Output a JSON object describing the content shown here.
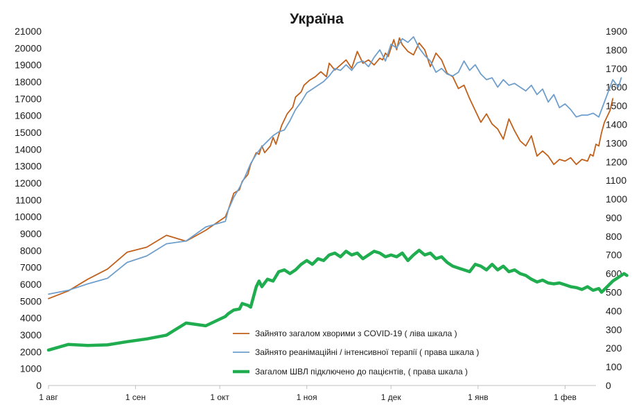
{
  "chart_data": {
    "type": "line",
    "title": "Україна",
    "y_left": {
      "min": 0,
      "max": 21000,
      "step": 1000,
      "ticks": [
        "0",
        "1000",
        "2000",
        "3000",
        "4000",
        "5000",
        "6000",
        "7000",
        "8000",
        "9000",
        "10000",
        "11000",
        "12000",
        "13000",
        "14000",
        "15000",
        "16000",
        "17000",
        "18000",
        "19000",
        "20000",
        "21000"
      ]
    },
    "y_right": {
      "min": 0,
      "max": 1900,
      "step": 100,
      "ticks": [
        "0",
        "100",
        "200",
        "300",
        "400",
        "500",
        "600",
        "700",
        "800",
        "900",
        "1000",
        "1100",
        "1200",
        "1300",
        "1400",
        "1500",
        "1600",
        "1700",
        "1800",
        "1900"
      ]
    },
    "x_range_days": [
      0,
      195
    ],
    "x_ticks": [
      {
        "label": "1 авг",
        "day": 0
      },
      {
        "label": "1 сен",
        "day": 31
      },
      {
        "label": "1 окт",
        "day": 61
      },
      {
        "label": "1 ноя",
        "day": 92
      },
      {
        "label": "1 дек",
        "day": 122
      },
      {
        "label": "1 янв",
        "day": 153
      },
      {
        "label": "1 фев",
        "day": 184
      }
    ],
    "series": [
      {
        "name": "Зайнято загалом хворими з COVID-19 ( ліва шкала )",
        "axis": "left",
        "color": "#c0601a",
        "width": 1.8,
        "points": [
          [
            0,
            5150
          ],
          [
            7,
            5600
          ],
          [
            14,
            6300
          ],
          [
            21,
            6900
          ],
          [
            28,
            7900
          ],
          [
            35,
            8200
          ],
          [
            42,
            8900
          ],
          [
            49,
            8550
          ],
          [
            56,
            9200
          ],
          [
            63,
            10000
          ],
          [
            64,
            10400
          ],
          [
            66,
            11400
          ],
          [
            68,
            11600
          ],
          [
            69,
            12100
          ],
          [
            71,
            12500
          ],
          [
            72,
            13100
          ],
          [
            74,
            13800
          ],
          [
            75,
            13700
          ],
          [
            76,
            14200
          ],
          [
            77,
            13800
          ],
          [
            79,
            14200
          ],
          [
            80,
            14700
          ],
          [
            81,
            14300
          ],
          [
            83,
            15400
          ],
          [
            85,
            16100
          ],
          [
            87,
            16500
          ],
          [
            88,
            17100
          ],
          [
            90,
            17400
          ],
          [
            91,
            17800
          ],
          [
            93,
            18100
          ],
          [
            95,
            18300
          ],
          [
            97,
            18600
          ],
          [
            99,
            18300
          ],
          [
            100,
            19100
          ],
          [
            102,
            18700
          ],
          [
            104,
            19000
          ],
          [
            106,
            19300
          ],
          [
            108,
            18800
          ],
          [
            110,
            19800
          ],
          [
            112,
            19100
          ],
          [
            114,
            19300
          ],
          [
            116,
            19000
          ],
          [
            118,
            19400
          ],
          [
            119,
            19300
          ],
          [
            120,
            19700
          ],
          [
            121,
            19500
          ],
          [
            122,
            20000
          ],
          [
            123,
            20500
          ],
          [
            124,
            19900
          ],
          [
            125,
            20600
          ],
          [
            126,
            20200
          ],
          [
            128,
            19800
          ],
          [
            130,
            19600
          ],
          [
            132,
            20300
          ],
          [
            134,
            19900
          ],
          [
            136,
            18900
          ],
          [
            138,
            19700
          ],
          [
            140,
            19300
          ],
          [
            142,
            18500
          ],
          [
            144,
            18300
          ],
          [
            146,
            17600
          ],
          [
            148,
            17800
          ],
          [
            150,
            17000
          ],
          [
            152,
            16300
          ],
          [
            154,
            15600
          ],
          [
            156,
            16100
          ],
          [
            158,
            15500
          ],
          [
            160,
            15200
          ],
          [
            162,
            14600
          ],
          [
            164,
            15800
          ],
          [
            166,
            15100
          ],
          [
            168,
            14500
          ],
          [
            170,
            14200
          ],
          [
            172,
            14800
          ],
          [
            174,
            13600
          ],
          [
            176,
            13900
          ],
          [
            178,
            13600
          ],
          [
            180,
            13100
          ],
          [
            182,
            13400
          ],
          [
            184,
            13300
          ],
          [
            186,
            13500
          ],
          [
            188,
            13100
          ],
          [
            190,
            13400
          ],
          [
            192,
            13300
          ],
          [
            193,
            13700
          ],
          [
            194,
            13600
          ],
          [
            195,
            14300
          ],
          [
            196,
            14200
          ],
          [
            197,
            15000
          ],
          [
            198,
            15600
          ],
          [
            200,
            16300
          ],
          [
            201,
            17000
          ]
        ]
      },
      {
        "name": "Зайнято реанімаційні / інтенсивної терапії ( права шкала )",
        "axis": "right",
        "color": "#6e9ecb",
        "width": 1.8,
        "points": [
          [
            0,
            490
          ],
          [
            7,
            510
          ],
          [
            14,
            545
          ],
          [
            21,
            575
          ],
          [
            28,
            660
          ],
          [
            35,
            695
          ],
          [
            42,
            760
          ],
          [
            49,
            775
          ],
          [
            56,
            850
          ],
          [
            63,
            880
          ],
          [
            64,
            940
          ],
          [
            66,
            1010
          ],
          [
            68,
            1060
          ],
          [
            70,
            1120
          ],
          [
            72,
            1190
          ],
          [
            74,
            1240
          ],
          [
            76,
            1280
          ],
          [
            78,
            1310
          ],
          [
            80,
            1340
          ],
          [
            82,
            1360
          ],
          [
            84,
            1370
          ],
          [
            86,
            1420
          ],
          [
            88,
            1480
          ],
          [
            90,
            1520
          ],
          [
            92,
            1570
          ],
          [
            94,
            1590
          ],
          [
            96,
            1610
          ],
          [
            98,
            1630
          ],
          [
            100,
            1660
          ],
          [
            102,
            1700
          ],
          [
            104,
            1690
          ],
          [
            106,
            1720
          ],
          [
            108,
            1690
          ],
          [
            110,
            1730
          ],
          [
            112,
            1740
          ],
          [
            114,
            1710
          ],
          [
            116,
            1760
          ],
          [
            118,
            1800
          ],
          [
            120,
            1740
          ],
          [
            122,
            1830
          ],
          [
            124,
            1810
          ],
          [
            126,
            1860
          ],
          [
            128,
            1840
          ],
          [
            130,
            1870
          ],
          [
            132,
            1810
          ],
          [
            134,
            1770
          ],
          [
            136,
            1740
          ],
          [
            138,
            1680
          ],
          [
            140,
            1700
          ],
          [
            142,
            1670
          ],
          [
            144,
            1660
          ],
          [
            146,
            1680
          ],
          [
            148,
            1740
          ],
          [
            150,
            1690
          ],
          [
            152,
            1720
          ],
          [
            154,
            1670
          ],
          [
            156,
            1640
          ],
          [
            158,
            1650
          ],
          [
            160,
            1600
          ],
          [
            162,
            1640
          ],
          [
            164,
            1610
          ],
          [
            166,
            1620
          ],
          [
            168,
            1600
          ],
          [
            170,
            1580
          ],
          [
            172,
            1610
          ],
          [
            174,
            1560
          ],
          [
            176,
            1590
          ],
          [
            178,
            1520
          ],
          [
            180,
            1560
          ],
          [
            182,
            1490
          ],
          [
            184,
            1510
          ],
          [
            186,
            1480
          ],
          [
            188,
            1440
          ],
          [
            190,
            1450
          ],
          [
            192,
            1450
          ],
          [
            194,
            1460
          ],
          [
            196,
            1440
          ],
          [
            197,
            1480
          ],
          [
            199,
            1560
          ],
          [
            201,
            1640
          ],
          [
            203,
            1600
          ],
          [
            204,
            1650
          ]
        ]
      },
      {
        "name": "Загалом ШВЛ  підключено до пацієнтів, ( права шкала )",
        "axis": "right",
        "color": "#1fad4f",
        "width": 4.5,
        "points": [
          [
            0,
            190
          ],
          [
            7,
            220
          ],
          [
            14,
            215
          ],
          [
            21,
            218
          ],
          [
            28,
            235
          ],
          [
            35,
            250
          ],
          [
            42,
            270
          ],
          [
            49,
            335
          ],
          [
            56,
            320
          ],
          [
            63,
            370
          ],
          [
            64,
            385
          ],
          [
            66,
            405
          ],
          [
            68,
            410
          ],
          [
            69,
            440
          ],
          [
            71,
            430
          ],
          [
            72,
            420
          ],
          [
            74,
            530
          ],
          [
            75,
            560
          ],
          [
            76,
            530
          ],
          [
            78,
            570
          ],
          [
            80,
            560
          ],
          [
            82,
            610
          ],
          [
            84,
            620
          ],
          [
            86,
            600
          ],
          [
            88,
            620
          ],
          [
            90,
            650
          ],
          [
            92,
            670
          ],
          [
            94,
            650
          ],
          [
            96,
            680
          ],
          [
            98,
            670
          ],
          [
            100,
            700
          ],
          [
            102,
            710
          ],
          [
            104,
            690
          ],
          [
            106,
            720
          ],
          [
            108,
            700
          ],
          [
            110,
            710
          ],
          [
            112,
            680
          ],
          [
            114,
            700
          ],
          [
            116,
            720
          ],
          [
            118,
            710
          ],
          [
            120,
            690
          ],
          [
            122,
            700
          ],
          [
            124,
            690
          ],
          [
            126,
            710
          ],
          [
            128,
            670
          ],
          [
            130,
            700
          ],
          [
            132,
            725
          ],
          [
            134,
            700
          ],
          [
            136,
            710
          ],
          [
            138,
            680
          ],
          [
            140,
            690
          ],
          [
            142,
            660
          ],
          [
            144,
            640
          ],
          [
            146,
            630
          ],
          [
            148,
            620
          ],
          [
            150,
            610
          ],
          [
            152,
            650
          ],
          [
            154,
            640
          ],
          [
            156,
            620
          ],
          [
            158,
            650
          ],
          [
            160,
            620
          ],
          [
            162,
            640
          ],
          [
            164,
            610
          ],
          [
            166,
            620
          ],
          [
            168,
            600
          ],
          [
            170,
            590
          ],
          [
            172,
            570
          ],
          [
            174,
            555
          ],
          [
            176,
            565
          ],
          [
            178,
            550
          ],
          [
            180,
            545
          ],
          [
            182,
            550
          ],
          [
            184,
            540
          ],
          [
            186,
            530
          ],
          [
            188,
            525
          ],
          [
            190,
            515
          ],
          [
            192,
            530
          ],
          [
            194,
            510
          ],
          [
            196,
            520
          ],
          [
            197,
            500
          ],
          [
            199,
            530
          ],
          [
            201,
            560
          ],
          [
            203,
            580
          ],
          [
            205,
            600
          ],
          [
            206,
            590
          ]
        ]
      }
    ],
    "legend": [
      "Зайнято загалом хворими з COVID-19 ( ліва шкала )",
      "Зайнято реанімаційні / інтенсивної терапії ( права шкала )",
      "Загалом ШВЛ  підключено до пацієнтів, ( права шкала )"
    ],
    "legend_position": "bottom-center",
    "grid": false
  }
}
